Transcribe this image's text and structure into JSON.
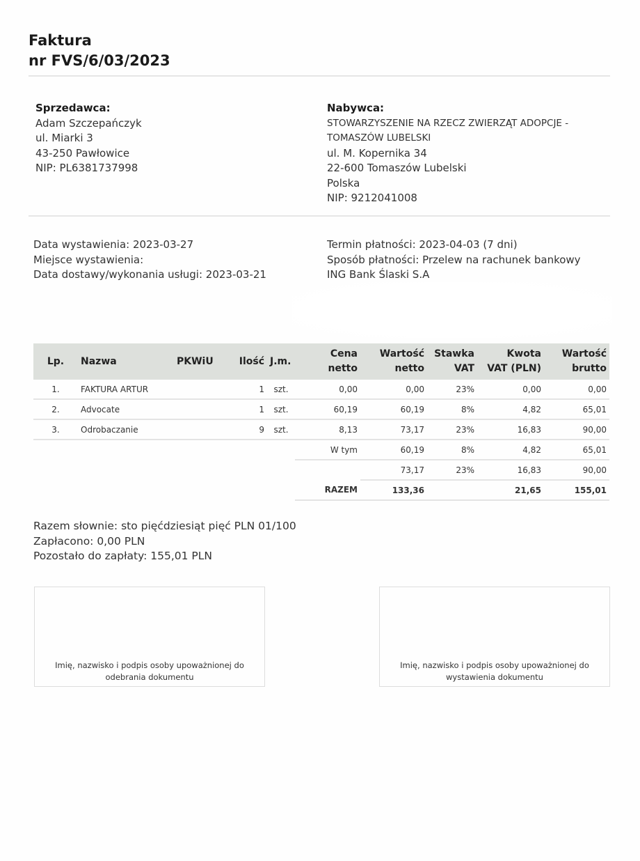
{
  "title": {
    "line1": "Faktura",
    "line2": "nr FVS/6/03/2023"
  },
  "seller": {
    "label": "Sprzedawca:",
    "name": "Adam Szczepańczyk",
    "street": "ul. Miarki 3",
    "city": "43-250 Pawłowice",
    "nip": "NIP: PL6381737998"
  },
  "buyer": {
    "label": "Nabywca:",
    "name1": "STOWARZYSZENIE NA RZECZ ZWIERZĄT ADOPCJE -",
    "name2": "TOMASZÓW LUBELSKI",
    "street": "ul. M. Kopernika 34",
    "city": "22-600 Tomaszów Lubelski",
    "country": "Polska",
    "nip": "NIP: 9212041008"
  },
  "dates": {
    "issue": "Data wystawienia: 2023-03-27",
    "place": "Miejsce wystawienia:",
    "delivery": "Data dostawy/wykonania usługi: 2023-03-21"
  },
  "payment": {
    "due": "Termin płatności: 2023-04-03 (7 dni)",
    "method": "Sposób płatności: Przelew na rachunek bankowy",
    "bank": "ING Bank Śląski S.A"
  },
  "table": {
    "headers": {
      "lp": "Lp.",
      "name": "Nazwa",
      "pkwiu": "PKWiU",
      "qty": "Ilość",
      "unit": "J.m.",
      "price1": "Cena",
      "price2": "netto",
      "net1": "Wartość",
      "net2": "netto",
      "vat1": "Stawka",
      "vat2": "VAT",
      "vatamt1": "Kwota",
      "vatamt2": "VAT (PLN)",
      "gross1": "Wartość",
      "gross2": "brutto"
    },
    "rows": [
      {
        "lp": "1.",
        "name": "FAKTURA ARTUR",
        "pkwiu": "",
        "qty": "1",
        "unit": "szt.",
        "price": "0,00",
        "net": "0,00",
        "vat": "23%",
        "vatamt": "0,00",
        "gross": "0,00"
      },
      {
        "lp": "2.",
        "name": "Advocate",
        "pkwiu": "",
        "qty": "1",
        "unit": "szt.",
        "price": "60,19",
        "net": "60,19",
        "vat": "8%",
        "vatamt": "4,82",
        "gross": "65,01"
      },
      {
        "lp": "3.",
        "name": "Odrobaczanie",
        "pkwiu": "",
        "qty": "9",
        "unit": "szt.",
        "price": "8,13",
        "net": "73,17",
        "vat": "23%",
        "vatamt": "16,83",
        "gross": "90,00"
      }
    ],
    "summary": [
      {
        "label": "W tym",
        "net": "60,19",
        "vat": "8%",
        "vatamt": "4,82",
        "gross": "65,01"
      },
      {
        "label": "",
        "net": "73,17",
        "vat": "23%",
        "vatamt": "16,83",
        "gross": "90,00"
      }
    ],
    "total": {
      "label": "RAZEM",
      "net": "133,36",
      "vatamt": "21,65",
      "gross": "155,01"
    }
  },
  "totals": {
    "words": "Razem słownie: sto pięćdziesiąt pięć PLN 01/100",
    "paid": "Zapłacono: 0,00 PLN",
    "remaining": "Pozostało do zapłaty: 155,01 PLN"
  },
  "signatures": {
    "left": "Imię, nazwisko i podpis osoby upoważnionej do odebrania dokumentu",
    "right": "Imię, nazwisko i podpis osoby upoważnionej do wystawienia dokumentu"
  }
}
